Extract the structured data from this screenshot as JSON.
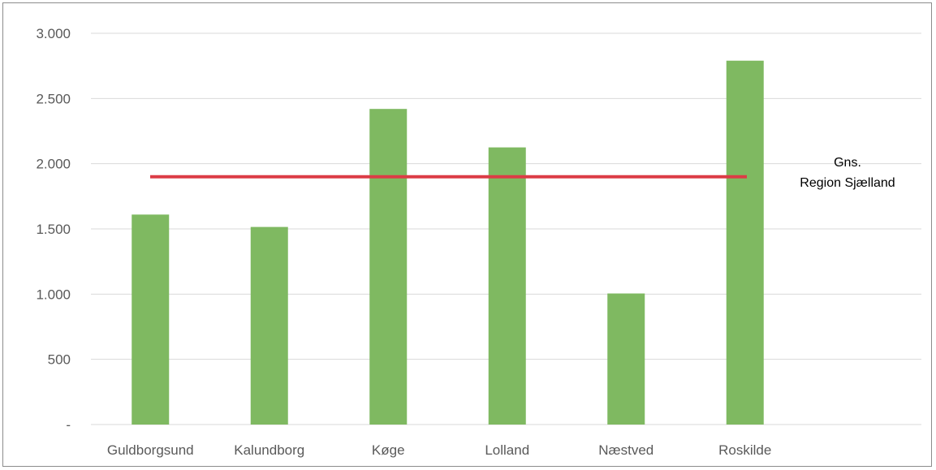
{
  "chart_data": {
    "type": "bar",
    "categories": [
      "Guldborgsund",
      "Kalundborg",
      "Køge",
      "Lolland",
      "Næstved",
      "Roskilde"
    ],
    "values": [
      1610,
      1515,
      2420,
      2125,
      1005,
      2790
    ],
    "ylim": [
      0,
      3000
    ],
    "yticks": [
      0,
      500,
      1000,
      1500,
      2000,
      2500,
      3000
    ],
    "ytick_labels": [
      "-",
      "500",
      "1.000",
      "1.500",
      "2.000",
      "2.500",
      "3.000"
    ],
    "grid": true,
    "reference_line": {
      "value": 1900,
      "label_lines": [
        "Gns.",
        "Region Sjælland"
      ],
      "color": "#dc3c46"
    },
    "bar_color": "#7fb961",
    "grid_color": "#d9d9d9"
  }
}
